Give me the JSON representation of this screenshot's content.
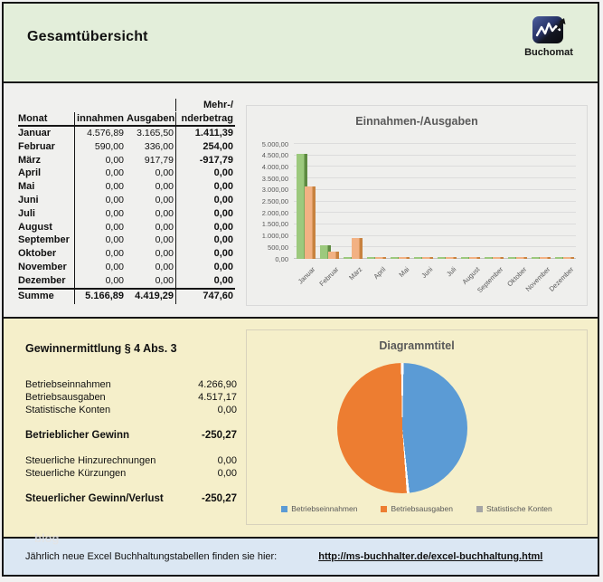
{
  "header": {
    "title": "Gesamtübersicht",
    "logo_text": "Buchomat"
  },
  "table": {
    "header_top": "Mehr-/",
    "columns": [
      "Monat",
      "innahmen",
      "Ausgaben",
      "nderbetrag"
    ],
    "rows": [
      [
        "Januar",
        "4.576,89",
        "3.165,50",
        "1.411,39"
      ],
      [
        "Februar",
        "590,00",
        "336,00",
        "254,00"
      ],
      [
        "März",
        "0,00",
        "917,79",
        "-917,79"
      ],
      [
        "April",
        "0,00",
        "0,00",
        "0,00"
      ],
      [
        "Mai",
        "0,00",
        "0,00",
        "0,00"
      ],
      [
        "Juni",
        "0,00",
        "0,00",
        "0,00"
      ],
      [
        "Juli",
        "0,00",
        "0,00",
        "0,00"
      ],
      [
        "August",
        "0,00",
        "0,00",
        "0,00"
      ],
      [
        "September",
        "0,00",
        "0,00",
        "0,00"
      ],
      [
        "Oktober",
        "0,00",
        "0,00",
        "0,00"
      ],
      [
        "November",
        "0,00",
        "0,00",
        "0,00"
      ],
      [
        "Dezember",
        "0,00",
        "0,00",
        "0,00"
      ]
    ],
    "summe": [
      "Summe",
      "5.166,89",
      "4.419,29",
      "747,60"
    ]
  },
  "chart_data": [
    {
      "type": "bar",
      "title": "Einnahmen-/Ausgaben",
      "categories": [
        "Januar",
        "Februar",
        "März",
        "April",
        "Mai",
        "Juni",
        "Juli",
        "August",
        "September",
        "Oktober",
        "November",
        "Dezember"
      ],
      "series": [
        {
          "name": "Einnahmen",
          "color": "#9cc97d",
          "edge": "#5d8a41",
          "values": [
            4576.89,
            590.0,
            0,
            0,
            0,
            0,
            0,
            0,
            0,
            0,
            0,
            0
          ]
        },
        {
          "name": "Ausgaben",
          "color": "#f2b183",
          "edge": "#c8823f",
          "values": [
            3165.5,
            336.0,
            917.79,
            0,
            0,
            0,
            0,
            0,
            0,
            0,
            0,
            0
          ]
        }
      ],
      "ylim": [
        0,
        5000
      ],
      "ytick_step": 500,
      "ytick_labels": [
        "0,00",
        "500,00",
        "1.000,00",
        "1.500,00",
        "2.000,00",
        "2.500,00",
        "3.000,00",
        "3.500,00",
        "4.000,00",
        "4.500,00",
        "5.000,00"
      ],
      "grid": true,
      "legend_position": "none"
    },
    {
      "type": "pie",
      "title": "Diagrammtitel",
      "labels": [
        "Betriebseinnahmen",
        "Betriebsausgaben",
        "Statistische Konten"
      ],
      "values": [
        4266.9,
        4517.17,
        0
      ],
      "colors": [
        "#5b9bd5",
        "#ed7d31",
        "#a5a5a5"
      ],
      "legend_position": "bottom"
    }
  ],
  "gewinnermittlung": {
    "title": "Gewinnermittlung § 4 Abs. 3",
    "rows": [
      {
        "label": "Betriebseinnahmen",
        "value": "4.266,90",
        "bold": false,
        "gap": false
      },
      {
        "label": "Betriebsausgaben",
        "value": "4.517,17",
        "bold": false,
        "gap": false
      },
      {
        "label": "Statistische Konten",
        "value": "0,00",
        "bold": false,
        "gap": false
      },
      {
        "label": "Betrieblicher Gewinn",
        "value": "-250,27",
        "bold": true,
        "gap": true
      },
      {
        "label": "Steuerliche Hinzurechnungen",
        "value": "0,00",
        "bold": false,
        "gap": true
      },
      {
        "label": "Steuerliche Kürzungen",
        "value": "0,00",
        "bold": false,
        "gap": false
      },
      {
        "label": "Steuerlicher Gewinn/Verlust",
        "value": "-250,27",
        "bold": true,
        "gap": true
      }
    ]
  },
  "footer": {
    "text": "Jährlich neue Excel Buchhaltungstabellen finden sie hier:",
    "link": "http://ms-buchhalter.de/excel-buchhaltung.html"
  },
  "watermark": "blog",
  "colors": {
    "header_bg": "#e3eeda",
    "top_bg": "#f0f0ee",
    "bottom_bg": "#f5efca",
    "footer_bg": "#dbe7f3",
    "chart_text": "#595959",
    "bar_green": "#9cc97d",
    "bar_orange": "#f2b183",
    "pie_blue": "#5b9bd5",
    "pie_orange": "#ed7d31",
    "pie_gray": "#a5a5a5"
  }
}
